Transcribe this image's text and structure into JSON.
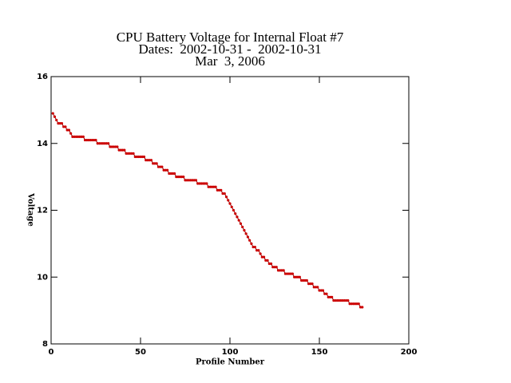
{
  "chart_data": {
    "type": "scatter",
    "title": "CPU Battery Voltage for Internal Float #7",
    "subtitle": "Dates:  2002-10-31 -  2002-10-31",
    "date": "Mar  3, 2006",
    "x_label": "Profile Number",
    "y_label": "Voltage",
    "color": "#cc0000",
    "line_color": "#800000",
    "xlim": [
      0,
      200
    ],
    "xticks": [
      0,
      50,
      100,
      150,
      200
    ],
    "ylim": [
      8,
      16
    ],
    "yticks": [
      8,
      10,
      12,
      14,
      16
    ],
    "x": [
      1,
      2,
      3,
      4,
      5,
      6,
      7,
      8,
      9,
      10,
      11,
      12,
      13,
      14,
      15,
      16,
      17,
      18,
      19,
      20,
      21,
      22,
      23,
      24,
      25,
      26,
      27,
      28,
      29,
      30,
      31,
      32,
      33,
      34,
      35,
      36,
      37,
      38,
      39,
      40,
      41,
      42,
      43,
      44,
      45,
      46,
      47,
      48,
      49,
      50,
      51,
      52,
      53,
      54,
      55,
      56,
      57,
      58,
      59,
      60,
      61,
      62,
      63,
      64,
      65,
      66,
      67,
      68,
      69,
      70,
      71,
      72,
      73,
      74,
      75,
      76,
      77,
      78,
      79,
      80,
      81,
      82,
      83,
      84,
      85,
      86,
      87,
      88,
      89,
      90,
      91,
      92,
      93,
      94,
      95,
      96,
      97,
      98,
      99,
      100,
      101,
      102,
      103,
      104,
      105,
      106,
      107,
      108,
      109,
      110,
      111,
      112,
      113,
      114,
      115,
      116,
      117,
      118,
      119,
      120,
      121,
      122,
      123,
      124,
      125,
      126,
      127,
      128,
      129,
      130,
      131,
      132,
      133,
      134,
      135,
      136,
      137,
      138,
      139,
      140,
      141,
      142,
      143,
      144,
      145,
      146,
      147,
      148,
      149,
      150,
      151,
      152,
      153,
      154,
      155,
      156,
      157,
      158,
      159,
      160,
      161,
      162,
      163,
      164,
      165,
      166,
      167,
      168,
      169,
      170,
      171,
      172,
      173,
      174
    ],
    "values": [
      14.9,
      14.8,
      14.7,
      14.6,
      14.6,
      14.6,
      14.5,
      14.5,
      14.4,
      14.4,
      14.3,
      14.2,
      14.2,
      14.2,
      14.2,
      14.2,
      14.2,
      14.2,
      14.1,
      14.1,
      14.1,
      14.1,
      14.1,
      14.1,
      14.1,
      14.0,
      14.0,
      14.0,
      14.0,
      14.0,
      14.0,
      14.0,
      13.9,
      13.9,
      13.9,
      13.9,
      13.9,
      13.8,
      13.8,
      13.8,
      13.8,
      13.7,
      13.7,
      13.7,
      13.7,
      13.7,
      13.6,
      13.6,
      13.6,
      13.6,
      13.6,
      13.6,
      13.5,
      13.5,
      13.5,
      13.5,
      13.4,
      13.4,
      13.4,
      13.3,
      13.3,
      13.3,
      13.2,
      13.2,
      13.2,
      13.1,
      13.1,
      13.1,
      13.1,
      13.0,
      13.0,
      13.0,
      13.0,
      13.0,
      12.9,
      12.9,
      12.9,
      12.9,
      12.9,
      12.9,
      12.9,
      12.8,
      12.8,
      12.8,
      12.8,
      12.8,
      12.8,
      12.7,
      12.7,
      12.7,
      12.7,
      12.7,
      12.6,
      12.6,
      12.6,
      12.5,
      12.5,
      12.4,
      12.3,
      12.2,
      12.1,
      12.0,
      11.9,
      11.8,
      11.7,
      11.6,
      11.5,
      11.4,
      11.3,
      11.2,
      11.1,
      11.0,
      10.9,
      10.9,
      10.8,
      10.8,
      10.7,
      10.6,
      10.6,
      10.5,
      10.5,
      10.4,
      10.4,
      10.3,
      10.3,
      10.3,
      10.2,
      10.2,
      10.2,
      10.2,
      10.1,
      10.1,
      10.1,
      10.1,
      10.1,
      10.0,
      10.0,
      10.0,
      10.0,
      9.9,
      9.9,
      9.9,
      9.9,
      9.8,
      9.8,
      9.8,
      9.7,
      9.7,
      9.7,
      9.6,
      9.6,
      9.6,
      9.5,
      9.5,
      9.4,
      9.4,
      9.4,
      9.3,
      9.3,
      9.3,
      9.3,
      9.3,
      9.3,
      9.3,
      9.3,
      9.3,
      9.2,
      9.2,
      9.2,
      9.2,
      9.2,
      9.2,
      9.1,
      9.1
    ]
  }
}
